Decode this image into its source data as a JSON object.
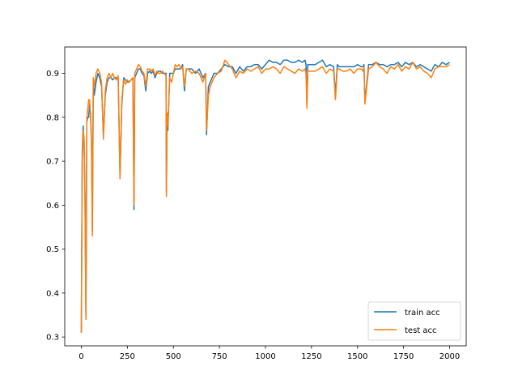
{
  "chart_data": {
    "type": "line",
    "title": "",
    "xlabel": "",
    "ylabel": "",
    "xlim": [
      -90,
      2090
    ],
    "ylim": [
      0.28,
      0.96
    ],
    "xticks": [
      0,
      250,
      500,
      750,
      1000,
      1250,
      1500,
      1750,
      2000
    ],
    "yticks": [
      0.3,
      0.4,
      0.5,
      0.6,
      0.7,
      0.8,
      0.9
    ],
    "ytick_labels": [
      "0.3",
      "0.4",
      "0.5",
      "0.6",
      "0.7",
      "0.8",
      "0.9"
    ],
    "grid": false,
    "legend_position": "lower-right",
    "series": [
      {
        "name": "train acc",
        "color": "#1f77b4",
        "x": [
          0,
          5,
          10,
          15,
          20,
          25,
          30,
          35,
          40,
          45,
          50,
          55,
          60,
          65,
          70,
          80,
          90,
          100,
          110,
          120,
          130,
          140,
          150,
          160,
          170,
          180,
          190,
          200,
          210,
          220,
          230,
          240,
          250,
          260,
          270,
          280,
          286,
          290,
          300,
          310,
          320,
          330,
          340,
          350,
          360,
          370,
          380,
          390,
          400,
          410,
          420,
          430,
          440,
          450,
          460,
          462,
          466,
          470,
          480,
          490,
          500,
          510,
          520,
          530,
          540,
          550,
          560,
          570,
          580,
          590,
          600,
          620,
          640,
          660,
          675,
          680,
          690,
          700,
          720,
          740,
          760,
          780,
          800,
          820,
          840,
          860,
          880,
          900,
          920,
          940,
          960,
          980,
          1000,
          1020,
          1040,
          1060,
          1080,
          1100,
          1120,
          1140,
          1160,
          1180,
          1200,
          1215,
          1220,
          1225,
          1230,
          1250,
          1270,
          1290,
          1310,
          1330,
          1350,
          1370,
          1380,
          1390,
          1400,
          1420,
          1440,
          1460,
          1480,
          1500,
          1520,
          1530,
          1535,
          1540,
          1560,
          1580,
          1600,
          1620,
          1640,
          1660,
          1680,
          1700,
          1720,
          1740,
          1760,
          1780,
          1800,
          1820,
          1840,
          1860,
          1880,
          1900,
          1920,
          1940,
          1960,
          1980,
          2000
        ],
        "y": [
          0.31,
          0.72,
          0.78,
          0.74,
          0.62,
          0.35,
          0.79,
          0.8,
          0.8,
          0.83,
          0.81,
          0.75,
          0.54,
          0.88,
          0.85,
          0.88,
          0.9,
          0.89,
          0.87,
          0.76,
          0.85,
          0.88,
          0.89,
          0.89,
          0.885,
          0.89,
          0.89,
          0.89,
          0.67,
          0.83,
          0.89,
          0.885,
          0.88,
          0.88,
          0.885,
          0.89,
          0.59,
          0.89,
          0.9,
          0.91,
          0.91,
          0.9,
          0.895,
          0.86,
          0.9,
          0.905,
          0.9,
          0.905,
          0.89,
          0.9,
          0.905,
          0.905,
          0.9,
          0.9,
          0.9,
          0.63,
          0.8,
          0.77,
          0.9,
          0.9,
          0.9,
          0.91,
          0.91,
          0.91,
          0.91,
          0.92,
          0.86,
          0.91,
          0.91,
          0.91,
          0.91,
          0.9,
          0.91,
          0.89,
          0.9,
          0.76,
          0.87,
          0.88,
          0.9,
          0.9,
          0.91,
          0.92,
          0.915,
          0.915,
          0.9,
          0.915,
          0.905,
          0.915,
          0.915,
          0.92,
          0.92,
          0.91,
          0.92,
          0.93,
          0.925,
          0.925,
          0.92,
          0.93,
          0.93,
          0.925,
          0.925,
          0.93,
          0.925,
          0.93,
          0.92,
          0.83,
          0.92,
          0.92,
          0.92,
          0.925,
          0.93,
          0.915,
          0.92,
          0.915,
          0.85,
          0.92,
          0.915,
          0.915,
          0.915,
          0.915,
          0.915,
          0.92,
          0.915,
          0.915,
          0.92,
          0.835,
          0.92,
          0.92,
          0.925,
          0.92,
          0.92,
          0.915,
          0.92,
          0.92,
          0.925,
          0.915,
          0.925,
          0.92,
          0.925,
          0.915,
          0.92,
          0.915,
          0.91,
          0.905,
          0.92,
          0.915,
          0.925,
          0.92,
          0.925
        ]
      },
      {
        "name": "test acc",
        "color": "#ff7f0e",
        "x": [
          0,
          5,
          10,
          15,
          20,
          25,
          30,
          35,
          40,
          45,
          50,
          55,
          60,
          65,
          70,
          80,
          90,
          100,
          110,
          120,
          130,
          140,
          150,
          160,
          170,
          180,
          190,
          200,
          210,
          220,
          230,
          240,
          250,
          260,
          270,
          280,
          286,
          290,
          300,
          310,
          320,
          330,
          340,
          350,
          360,
          370,
          380,
          390,
          400,
          410,
          420,
          430,
          440,
          450,
          460,
          462,
          466,
          470,
          480,
          490,
          500,
          510,
          520,
          530,
          540,
          550,
          560,
          570,
          580,
          590,
          600,
          620,
          640,
          660,
          675,
          680,
          690,
          700,
          720,
          740,
          760,
          780,
          800,
          820,
          840,
          860,
          880,
          900,
          920,
          940,
          960,
          980,
          1000,
          1020,
          1040,
          1060,
          1080,
          1100,
          1120,
          1140,
          1160,
          1180,
          1200,
          1215,
          1220,
          1225,
          1230,
          1250,
          1270,
          1290,
          1310,
          1330,
          1350,
          1370,
          1380,
          1390,
          1400,
          1420,
          1440,
          1460,
          1480,
          1500,
          1520,
          1530,
          1535,
          1540,
          1560,
          1580,
          1600,
          1620,
          1640,
          1660,
          1680,
          1700,
          1720,
          1740,
          1760,
          1780,
          1800,
          1820,
          1840,
          1860,
          1880,
          1900,
          1920,
          1940,
          1960,
          1980,
          2000
        ],
        "y": [
          0.31,
          0.7,
          0.77,
          0.75,
          0.6,
          0.34,
          0.8,
          0.82,
          0.84,
          0.84,
          0.8,
          0.74,
          0.53,
          0.89,
          0.87,
          0.9,
          0.91,
          0.9,
          0.88,
          0.75,
          0.86,
          0.89,
          0.9,
          0.89,
          0.9,
          0.89,
          0.885,
          0.895,
          0.66,
          0.84,
          0.885,
          0.875,
          0.885,
          0.88,
          0.885,
          0.89,
          0.6,
          0.9,
          0.91,
          0.92,
          0.915,
          0.905,
          0.9,
          0.87,
          0.91,
          0.91,
          0.905,
          0.91,
          0.895,
          0.905,
          0.9,
          0.9,
          0.905,
          0.9,
          0.895,
          0.62,
          0.81,
          0.78,
          0.89,
          0.88,
          0.9,
          0.92,
          0.915,
          0.92,
          0.91,
          0.915,
          0.87,
          0.91,
          0.91,
          0.905,
          0.9,
          0.905,
          0.9,
          0.88,
          0.9,
          0.77,
          0.85,
          0.87,
          0.89,
          0.9,
          0.905,
          0.93,
          0.92,
          0.91,
          0.89,
          0.905,
          0.9,
          0.91,
          0.905,
          0.91,
          0.915,
          0.9,
          0.91,
          0.91,
          0.915,
          0.91,
          0.9,
          0.915,
          0.91,
          0.905,
          0.9,
          0.91,
          0.905,
          0.91,
          0.9,
          0.82,
          0.905,
          0.905,
          0.905,
          0.91,
          0.915,
          0.9,
          0.91,
          0.905,
          0.84,
          0.91,
          0.91,
          0.905,
          0.905,
          0.91,
          0.9,
          0.91,
          0.91,
          0.905,
          0.915,
          0.83,
          0.91,
          0.915,
          0.925,
          0.915,
          0.91,
          0.9,
          0.915,
          0.91,
          0.92,
          0.905,
          0.915,
          0.91,
          0.925,
          0.91,
          0.915,
          0.905,
          0.9,
          0.89,
          0.91,
          0.915,
          0.915,
          0.915,
          0.92
        ]
      }
    ]
  }
}
